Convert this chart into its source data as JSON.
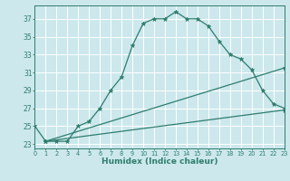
{
  "xlabel": "Humidex (Indice chaleur)",
  "bg_color": "#cce8ec",
  "grid_color": "#ffffff",
  "line_color": "#2e7d6e",
  "xlim": [
    0,
    23
  ],
  "ylim": [
    22.5,
    38.5
  ],
  "yticks": [
    23,
    25,
    27,
    29,
    31,
    33,
    35,
    37
  ],
  "xticks": [
    0,
    1,
    2,
    3,
    4,
    5,
    6,
    7,
    8,
    9,
    10,
    11,
    12,
    13,
    14,
    15,
    16,
    17,
    18,
    19,
    20,
    21,
    22,
    23
  ],
  "series": [
    {
      "x": [
        0,
        1,
        2,
        3,
        4,
        5,
        6,
        7,
        8,
        9,
        10,
        11,
        12,
        13,
        14,
        15,
        16,
        17,
        18,
        19,
        20,
        21,
        22,
        23
      ],
      "y": [
        25.0,
        23.3,
        23.3,
        23.3,
        25.0,
        25.5,
        27.0,
        29.0,
        30.5,
        34.0,
        36.5,
        37.0,
        37.0,
        37.8,
        37.0,
        37.0,
        36.2,
        34.5,
        33.0,
        32.5,
        31.3,
        29.0,
        27.5,
        27.0
      ]
    },
    {
      "x": [
        1,
        23
      ],
      "y": [
        23.3,
        31.5
      ]
    },
    {
      "x": [
        1,
        23
      ],
      "y": [
        23.3,
        26.8
      ]
    }
  ]
}
